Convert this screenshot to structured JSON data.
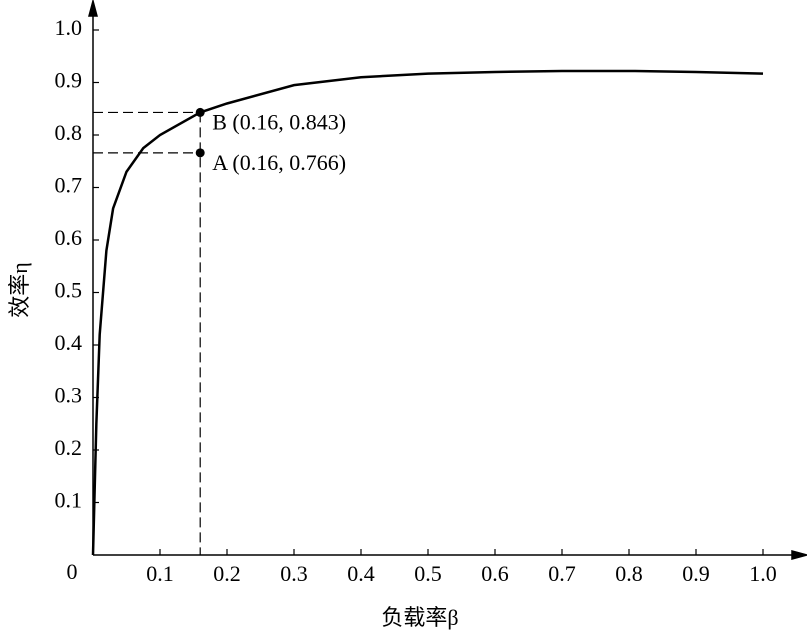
{
  "chart_data": {
    "type": "line",
    "x_label": "负载率β",
    "y_label": "效率η",
    "x": [
      0,
      0.005,
      0.01,
      0.02,
      0.03,
      0.05,
      0.075,
      0.1,
      0.16,
      0.2,
      0.3,
      0.4,
      0.5,
      0.6,
      0.7,
      0.8,
      0.9,
      1.0
    ],
    "values": [
      0,
      0.25,
      0.42,
      0.58,
      0.66,
      0.73,
      0.775,
      0.8,
      0.843,
      0.86,
      0.895,
      0.91,
      0.917,
      0.92,
      0.922,
      0.922,
      0.92,
      0.917
    ],
    "color": "#000000",
    "xlim": [
      0,
      1.0
    ],
    "ylim": [
      0,
      1.0
    ],
    "xticks": [
      0,
      0.1,
      0.2,
      0.3,
      0.4,
      0.5,
      0.6,
      0.7,
      0.8,
      0.9,
      {
        "value": 1,
        "label": "1.0"
      }
    ],
    "yticks": [
      0.1,
      0.2,
      0.3,
      0.4,
      0.5,
      0.6,
      0.7,
      0.8,
      0.9,
      {
        "value": 1,
        "label": "1.0"
      }
    ],
    "points": [
      {
        "label": "B (0.16, 0.843)",
        "x": 0.16,
        "y": 0.843
      },
      {
        "label": "A (0.16, 0.766)",
        "x": 0.16,
        "y": 0.766
      }
    ]
  }
}
